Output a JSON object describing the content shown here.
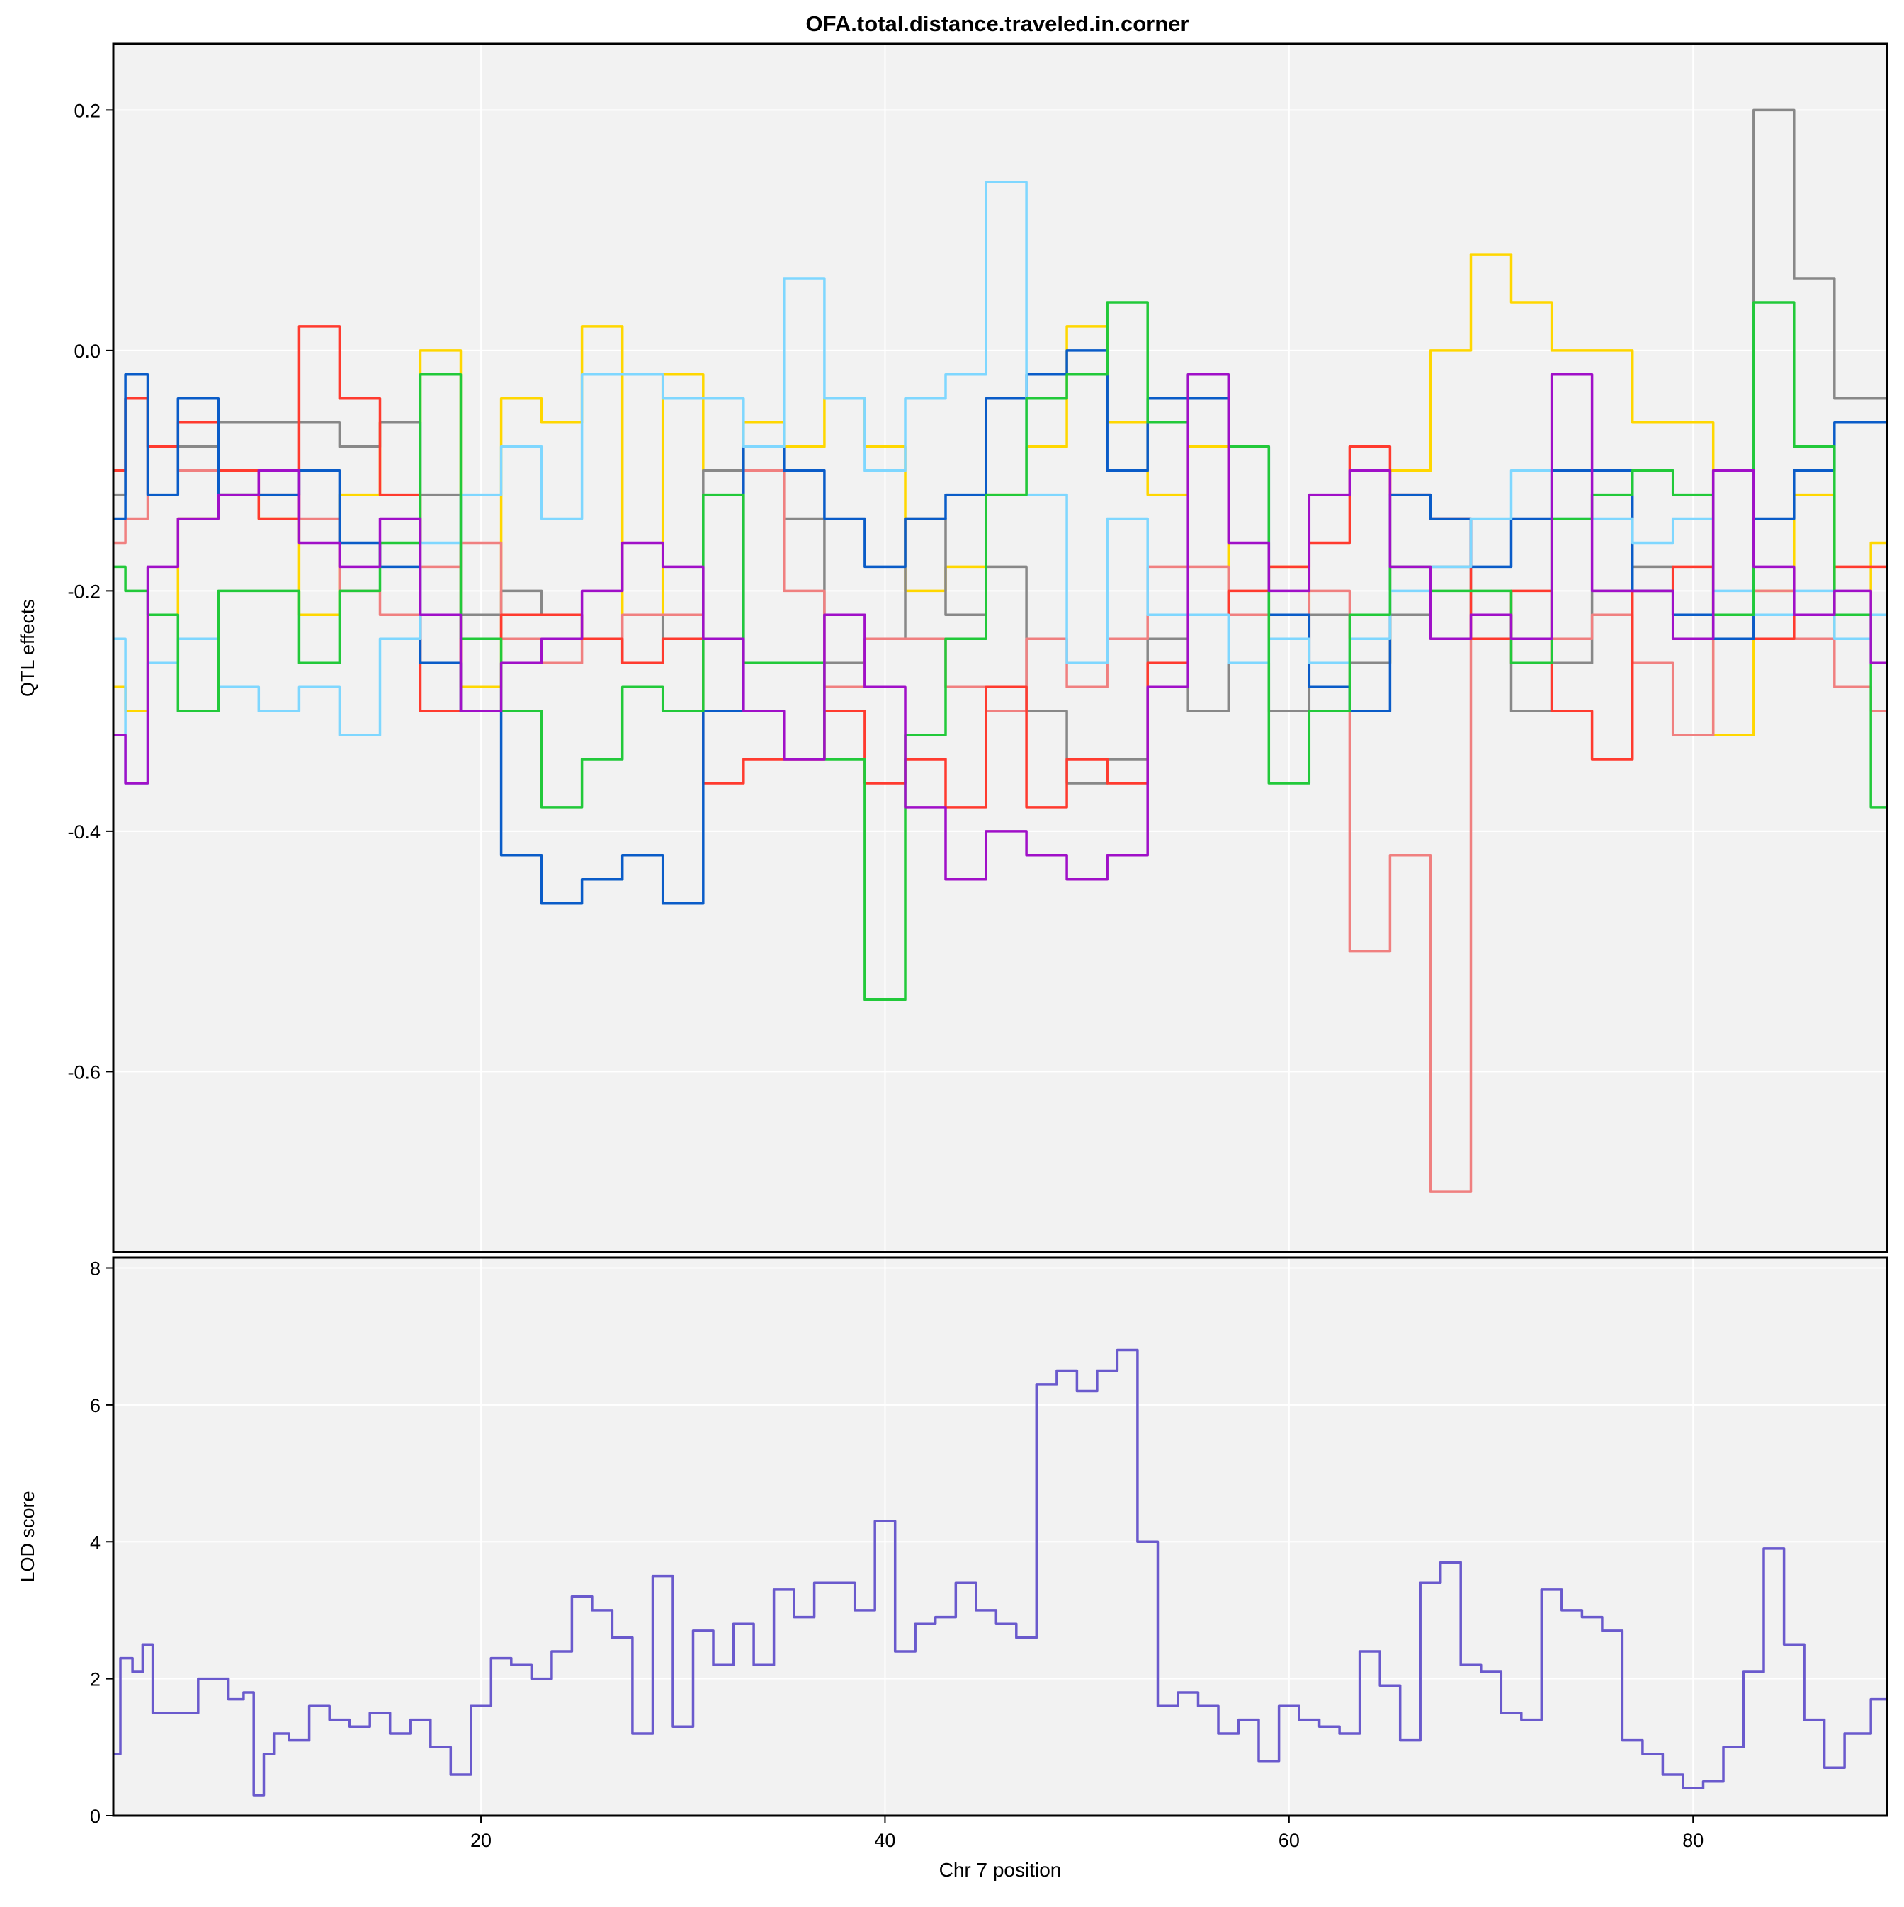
{
  "title": "OFA.total.distance.traveled.in.corner",
  "xlabel": "Chr 7 position",
  "colors": {
    "panel_bg": "#f2f2f2",
    "grid": "#ffffff",
    "frame": "#000000",
    "lod_line": "#6a5acd"
  },
  "chart_data": [
    {
      "type": "line",
      "panel": "top",
      "ylabel": "QTL effects",
      "xlim": [
        1.8,
        89.6
      ],
      "ylim": [
        -0.75,
        0.255
      ],
      "xticks": [
        20,
        40,
        60,
        80
      ],
      "yticks": [
        0.2,
        0.0,
        -0.2,
        -0.4,
        -0.6
      ],
      "ytick_labels": [
        "0.2",
        "0.0",
        "-0.2",
        "-0.4",
        "-0.6"
      ],
      "grid": true,
      "legend": "none",
      "x": [
        1.8,
        3,
        4,
        6,
        8,
        10,
        12,
        14,
        16,
        18,
        20,
        22,
        24,
        26,
        28,
        30,
        32,
        34,
        36,
        38,
        40,
        42,
        44,
        46,
        48,
        50,
        52,
        54,
        56,
        58,
        60,
        62,
        64,
        66,
        68,
        70,
        72,
        74,
        76,
        78,
        80,
        82,
        84,
        86,
        88,
        89.6
      ],
      "series": [
        {
          "color": "#ffd700",
          "values": [
            -0.28,
            -0.3,
            -0.22,
            -0.14,
            -0.12,
            -0.14,
            -0.22,
            -0.12,
            -0.06,
            0.0,
            -0.28,
            -0.04,
            -0.06,
            0.02,
            -0.22,
            -0.02,
            -0.1,
            -0.06,
            -0.08,
            -0.04,
            -0.08,
            -0.2,
            -0.18,
            -0.12,
            -0.08,
            0.02,
            -0.06,
            -0.12,
            -0.08,
            -0.22,
            -0.18,
            -0.22,
            -0.26,
            -0.1,
            0.0,
            0.08,
            0.04,
            0.0,
            0.0,
            -0.06,
            -0.06,
            -0.32,
            -0.2,
            -0.12,
            -0.24,
            -0.16
          ]
        },
        {
          "color": "#888888",
          "values": [
            -0.12,
            -0.04,
            -0.08,
            -0.08,
            -0.06,
            -0.06,
            -0.06,
            -0.08,
            -0.06,
            -0.12,
            -0.22,
            -0.2,
            -0.22,
            -0.24,
            -0.26,
            -0.22,
            -0.1,
            -0.08,
            -0.14,
            -0.26,
            -0.24,
            -0.14,
            -0.22,
            -0.18,
            -0.3,
            -0.36,
            -0.34,
            -0.24,
            -0.3,
            -0.26,
            -0.3,
            -0.22,
            -0.26,
            -0.22,
            -0.18,
            -0.22,
            -0.3,
            -0.26,
            -0.2,
            -0.18,
            -0.22,
            -0.1,
            0.2,
            0.06,
            -0.04,
            -0.04
          ]
        },
        {
          "color": "#f08080",
          "values": [
            -0.16,
            -0.14,
            -0.08,
            -0.1,
            -0.1,
            -0.12,
            -0.14,
            -0.2,
            -0.22,
            -0.18,
            -0.16,
            -0.24,
            -0.26,
            -0.24,
            -0.22,
            -0.22,
            -0.24,
            -0.1,
            -0.2,
            -0.28,
            -0.24,
            -0.24,
            -0.28,
            -0.3,
            -0.24,
            -0.28,
            -0.24,
            -0.18,
            -0.18,
            -0.22,
            -0.24,
            -0.2,
            -0.5,
            -0.42,
            -0.7,
            -0.22,
            -0.26,
            -0.24,
            -0.22,
            -0.26,
            -0.32,
            -0.22,
            -0.2,
            -0.24,
            -0.28,
            -0.3
          ]
        },
        {
          "color": "#ff3b2f",
          "values": [
            -0.1,
            -0.04,
            -0.08,
            -0.06,
            -0.1,
            -0.14,
            0.02,
            -0.04,
            -0.12,
            -0.3,
            -0.24,
            -0.22,
            -0.22,
            -0.24,
            -0.26,
            -0.24,
            -0.36,
            -0.34,
            -0.34,
            -0.3,
            -0.36,
            -0.34,
            -0.38,
            -0.28,
            -0.38,
            -0.34,
            -0.36,
            -0.26,
            -0.22,
            -0.2,
            -0.18,
            -0.16,
            -0.08,
            -0.12,
            -0.14,
            -0.24,
            -0.2,
            -0.3,
            -0.34,
            -0.2,
            -0.18,
            -0.22,
            -0.24,
            -0.22,
            -0.18,
            -0.18
          ]
        },
        {
          "color": "#0a5cc8",
          "values": [
            -0.14,
            -0.02,
            -0.12,
            -0.04,
            -0.12,
            -0.12,
            -0.1,
            -0.16,
            -0.18,
            -0.26,
            -0.3,
            -0.42,
            -0.46,
            -0.44,
            -0.42,
            -0.46,
            -0.3,
            -0.08,
            -0.1,
            -0.14,
            -0.18,
            -0.14,
            -0.12,
            -0.04,
            -0.02,
            0.0,
            -0.1,
            -0.04,
            -0.04,
            -0.08,
            -0.22,
            -0.28,
            -0.3,
            -0.12,
            -0.14,
            -0.18,
            -0.14,
            -0.1,
            -0.1,
            -0.2,
            -0.22,
            -0.24,
            -0.14,
            -0.1,
            -0.06,
            -0.06
          ]
        },
        {
          "color": "#7fd7ff",
          "values": [
            -0.24,
            -0.36,
            -0.26,
            -0.24,
            -0.28,
            -0.3,
            -0.28,
            -0.32,
            -0.24,
            -0.16,
            -0.12,
            -0.08,
            -0.14,
            -0.02,
            -0.02,
            -0.04,
            -0.04,
            -0.08,
            0.06,
            -0.04,
            -0.1,
            -0.04,
            -0.02,
            0.14,
            -0.12,
            -0.26,
            -0.14,
            -0.22,
            -0.22,
            -0.26,
            -0.24,
            -0.26,
            -0.24,
            -0.2,
            -0.18,
            -0.14,
            -0.1,
            -0.14,
            -0.14,
            -0.16,
            -0.14,
            -0.2,
            -0.22,
            -0.2,
            -0.24,
            -0.22
          ]
        },
        {
          "color": "#22c93a",
          "values": [
            -0.18,
            -0.2,
            -0.22,
            -0.3,
            -0.2,
            -0.2,
            -0.26,
            -0.2,
            -0.16,
            -0.02,
            -0.24,
            -0.3,
            -0.38,
            -0.34,
            -0.28,
            -0.3,
            -0.12,
            -0.26,
            -0.26,
            -0.34,
            -0.54,
            -0.32,
            -0.24,
            -0.12,
            -0.04,
            -0.02,
            0.04,
            -0.06,
            -0.02,
            -0.08,
            -0.36,
            -0.3,
            -0.22,
            -0.18,
            -0.2,
            -0.2,
            -0.26,
            -0.14,
            -0.12,
            -0.1,
            -0.12,
            -0.22,
            0.04,
            -0.08,
            -0.22,
            -0.38
          ]
        },
        {
          "color": "#a010c8",
          "values": [
            -0.32,
            -0.36,
            -0.18,
            -0.14,
            -0.12,
            -0.1,
            -0.16,
            -0.18,
            -0.14,
            -0.22,
            -0.3,
            -0.26,
            -0.24,
            -0.2,
            -0.16,
            -0.18,
            -0.24,
            -0.3,
            -0.34,
            -0.22,
            -0.28,
            -0.38,
            -0.44,
            -0.4,
            -0.42,
            -0.44,
            -0.42,
            -0.28,
            -0.02,
            -0.16,
            -0.2,
            -0.12,
            -0.1,
            -0.18,
            -0.24,
            -0.22,
            -0.24,
            -0.02,
            -0.2,
            -0.2,
            -0.24,
            -0.1,
            -0.18,
            -0.22,
            -0.2,
            -0.26
          ]
        }
      ]
    },
    {
      "type": "line",
      "panel": "bottom",
      "ylabel": "LOD score",
      "xlabel": "Chr 7 position",
      "xlim": [
        1.8,
        89.6
      ],
      "ylim": [
        0,
        8.15
      ],
      "xticks": [
        20,
        40,
        60,
        80
      ],
      "yticks": [
        0,
        2,
        4,
        6,
        8
      ],
      "grid": true,
      "legend": "none",
      "series": [
        {
          "color": "#6a5acd",
          "x": [
            1.8,
            2.5,
            3,
            3.5,
            4,
            5,
            7,
            8,
            8.5,
            9,
            9.5,
            10,
            11,
            12,
            13,
            14,
            15,
            16,
            17,
            18,
            19,
            20,
            21,
            22,
            23,
            24,
            25,
            26,
            27,
            28,
            29,
            30,
            31,
            32,
            33,
            34,
            35,
            36,
            37,
            38,
            39,
            40,
            41,
            42,
            43,
            44,
            45,
            46,
            47,
            48,
            49,
            50,
            51,
            52,
            53,
            54,
            55,
            56,
            57,
            58,
            59,
            60,
            61,
            62,
            63,
            64,
            65,
            66,
            67,
            68,
            69,
            70,
            71,
            72,
            73,
            74,
            75,
            76,
            77,
            78,
            79,
            80,
            81,
            82,
            83,
            84,
            85,
            86,
            87,
            88,
            89.6
          ],
          "values": [
            0.9,
            2.3,
            2.1,
            2.5,
            1.5,
            1.5,
            2.0,
            1.7,
            1.8,
            0.3,
            0.9,
            1.2,
            1.1,
            1.6,
            1.4,
            1.3,
            1.5,
            1.2,
            1.4,
            1.0,
            0.6,
            1.6,
            2.3,
            2.2,
            2.0,
            2.4,
            3.2,
            3.0,
            2.6,
            1.2,
            3.5,
            1.3,
            2.7,
            2.2,
            2.8,
            2.2,
            3.3,
            2.9,
            3.4,
            3.4,
            3.0,
            4.3,
            2.4,
            2.8,
            2.9,
            3.4,
            3.0,
            2.8,
            2.6,
            6.3,
            6.5,
            6.2,
            6.5,
            6.8,
            4.0,
            1.6,
            1.8,
            1.6,
            1.2,
            1.4,
            0.8,
            1.6,
            1.4,
            1.3,
            1.2,
            2.4,
            1.9,
            1.1,
            3.4,
            3.7,
            2.2,
            2.1,
            1.5,
            1.4,
            3.3,
            3.0,
            2.9,
            2.7,
            1.1,
            0.9,
            0.6,
            0.4,
            0.5,
            1.0,
            2.1,
            3.9,
            2.5,
            1.4,
            0.7,
            1.2,
            1.7
          ]
        }
      ]
    }
  ]
}
